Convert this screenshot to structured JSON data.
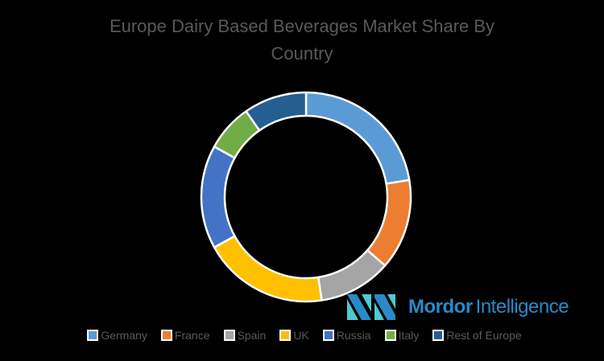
{
  "chart_data": {
    "type": "pie",
    "subtype": "doughnut",
    "title": "Europe Dairy Based Beverages Market Share By Country",
    "title_lines": [
      "Europe Dairy Based Beverages Market Share By",
      "Country"
    ],
    "categories": [
      "Germany",
      "France",
      "Spain",
      "UK",
      "Russia",
      "Italy",
      "Rest of Europe"
    ],
    "values": [
      22.4,
      14.0,
      11.2,
      19.4,
      16.0,
      7.3,
      9.7
    ],
    "unit": "%",
    "colors": [
      "#5b9bd5",
      "#ed7d31",
      "#a5a5a5",
      "#ffc000",
      "#4472c4",
      "#70ad47",
      "#255e91"
    ],
    "start_angle_deg": 0,
    "direction": "clockwise",
    "data_labels": false,
    "legend_position": "bottom"
  },
  "legend": {
    "items": [
      {
        "label": "Germany",
        "color": "#5b9bd5"
      },
      {
        "label": "France",
        "color": "#ed7d31"
      },
      {
        "label": "Spain",
        "color": "#a5a5a5"
      },
      {
        "label": "UK",
        "color": "#ffc000"
      },
      {
        "label": "Russia",
        "color": "#4472c4"
      },
      {
        "label": "Italy",
        "color": "#70ad47"
      },
      {
        "label": "Rest of Europe",
        "color": "#255e91"
      }
    ]
  },
  "logo": {
    "word1": "Mordor",
    "word2": "Intelligence",
    "color": "#2a8ac7",
    "accent": "#4ecbd0"
  },
  "colors": {
    "background": "#000000",
    "text": "#595959",
    "separator": "#ffffff"
  }
}
